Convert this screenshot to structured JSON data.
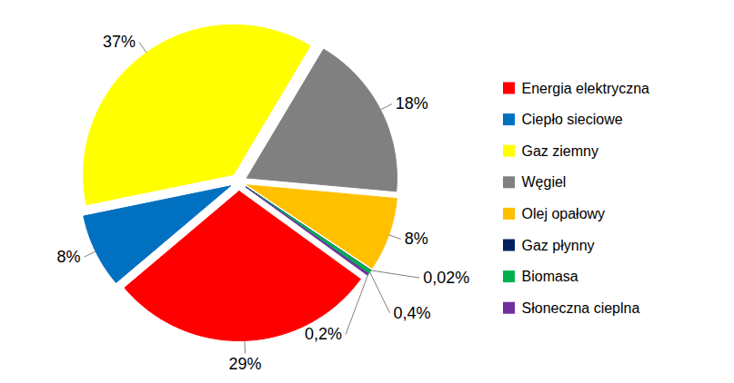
{
  "chart_data": {
    "type": "pie",
    "categories": [
      "Energia elektryczna",
      "Ciepło sieciowe",
      "Gaz ziemny",
      "Węgiel",
      "Olej opałowy",
      "Gaz płynny",
      "Biomasa",
      "Słoneczna cieplna"
    ],
    "values": [
      29,
      8,
      37,
      18,
      8,
      0.02,
      0.4,
      0.2
    ],
    "value_labels": [
      "29%",
      "8%",
      "37%",
      "18%",
      "8%",
      "0,02%",
      "0,4%",
      "0,2%"
    ],
    "colors": [
      "#FF0000",
      "#0070C0",
      "#FFFF00",
      "#808080",
      "#FFC000",
      "#002060",
      "#00B050",
      "#7030A0"
    ],
    "data_labels": true,
    "legend": "right"
  }
}
